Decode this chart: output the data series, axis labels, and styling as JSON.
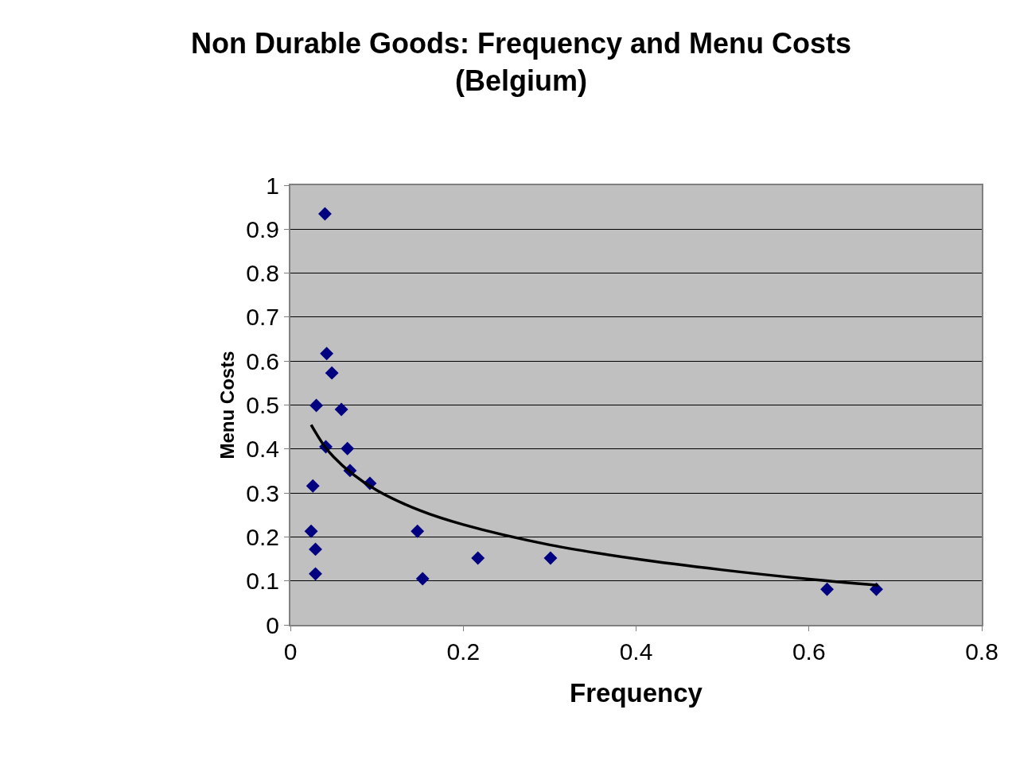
{
  "chart_data": {
    "type": "scatter",
    "title": "Non Durable Goods: Frequency and Menu Costs\n(Belgium)",
    "xlabel": "Frequency",
    "ylabel": "Menu Costs",
    "xlim": [
      0,
      0.8
    ],
    "xticks": [
      0,
      0.2,
      0.4,
      0.6,
      0.8
    ],
    "ylim": [
      0,
      1
    ],
    "yticks": [
      0,
      0.1,
      0.2,
      0.3,
      0.4,
      0.5,
      0.6,
      0.7,
      0.8,
      0.9,
      1
    ],
    "grid": "y",
    "legend": false,
    "marker": "diamond",
    "series": [
      {
        "color": "#000080",
        "x": [
          0.04,
          0.042,
          0.048,
          0.03,
          0.059,
          0.041,
          0.066,
          0.069,
          0.092,
          0.026,
          0.024,
          0.029,
          0.029,
          0.147,
          0.153,
          0.217,
          0.301,
          0.621,
          0.678
        ],
        "values": [
          0.935,
          0.617,
          0.573,
          0.499,
          0.49,
          0.405,
          0.401,
          0.351,
          0.322,
          0.316,
          0.213,
          0.172,
          0.116,
          0.213,
          0.105,
          0.152,
          0.152,
          0.081,
          0.081
        ]
      },
      {
        "type": "line",
        "color": "#000000",
        "marker": "none",
        "x": [
          0.024,
          0.03,
          0.04,
          0.05,
          0.07,
          0.1,
          0.15,
          0.2,
          0.3,
          0.4,
          0.5,
          0.6,
          0.68
        ],
        "values": [
          0.455,
          0.435,
          0.405,
          0.382,
          0.346,
          0.306,
          0.26,
          0.228,
          0.182,
          0.15,
          0.125,
          0.104,
          0.09
        ]
      }
    ]
  }
}
